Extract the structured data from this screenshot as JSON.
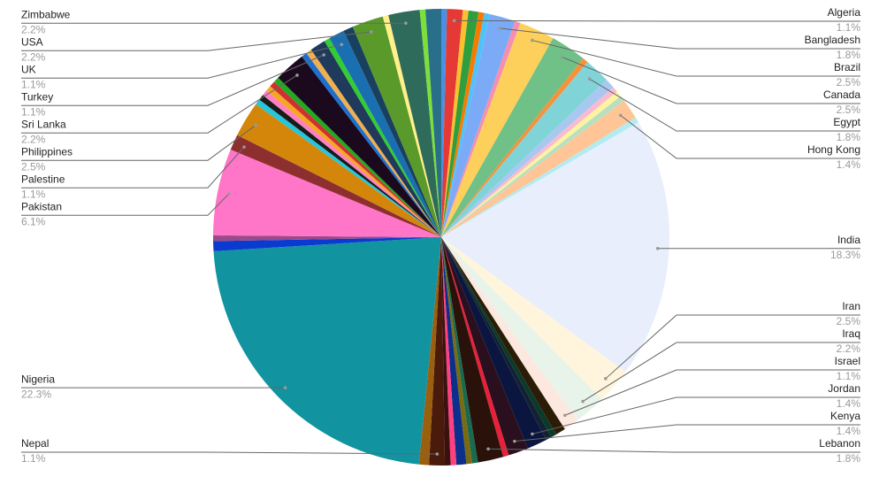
{
  "chart_data": {
    "type": "pie",
    "categories": [
      null,
      "Algeria",
      null,
      null,
      null,
      null,
      "Bangladesh",
      null,
      "Brazil",
      "Canada",
      null,
      "Egypt",
      null,
      null,
      null,
      null,
      "Hong Kong",
      null,
      "India",
      "Iran",
      "Iraq",
      "Israel",
      null,
      null,
      null,
      "Jordan",
      "Kenya",
      null,
      "Lebanon",
      null,
      null,
      null,
      null,
      null,
      "Nepal",
      null,
      "Nigeria",
      null,
      null,
      "Pakistan",
      "Palestine",
      "Philippines",
      null,
      null,
      null,
      null,
      null,
      null,
      "Sri Lanka",
      null,
      null,
      "Turkey",
      null,
      "UK",
      null,
      "USA",
      null,
      "Zimbabwe",
      null,
      null
    ],
    "values": [
      0.4,
      1.1,
      0.4,
      0.7,
      0.4,
      0.4,
      1.8,
      0.4,
      2.5,
      2.5,
      0.4,
      1.8,
      0.7,
      0.4,
      0.4,
      0.4,
      1.4,
      0.4,
      18.3,
      2.5,
      2.2,
      1.1,
      0.7,
      0.4,
      0.4,
      1.4,
      1.4,
      0.4,
      1.8,
      0.4,
      0.4,
      0.7,
      0.4,
      0.4,
      1.1,
      0.7,
      22.3,
      0.7,
      0.4,
      6.1,
      1.1,
      2.5,
      0.4,
      0.4,
      0.4,
      0.4,
      0.4,
      0.4,
      2.2,
      0.4,
      0.4,
      1.1,
      0.4,
      1.1,
      0.7,
      2.2,
      0.4,
      2.2,
      0.4,
      1.1
    ],
    "value_labels": [
      null,
      "1.1%",
      null,
      null,
      null,
      null,
      "1.8%",
      null,
      "2.5%",
      "2.5%",
      null,
      "1.8%",
      null,
      null,
      null,
      null,
      "1.4%",
      null,
      "18.3%",
      "2.5%",
      "2.2%",
      "1.1%",
      null,
      null,
      null,
      "1.4%",
      "1.4%",
      null,
      "1.8%",
      null,
      null,
      null,
      null,
      null,
      "1.1%",
      null,
      "22.3%",
      null,
      null,
      "6.1%",
      "1.1%",
      "2.5%",
      null,
      null,
      null,
      null,
      null,
      null,
      "2.2%",
      null,
      null,
      "1.1%",
      null,
      "1.1%",
      null,
      "2.2%",
      null,
      "2.2%",
      null,
      null
    ],
    "colors": [
      "#4a90e2",
      "#e53935",
      "#fbc02d",
      "#2e9e3e",
      "#f57c00",
      "#4fc3f7",
      "#7baaf7",
      "#f48fb1",
      "#fcd05a",
      "#6fc187",
      "#f5923e",
      "#80d4d8",
      "#a8c8f0",
      "#f8bbd0",
      "#fff3a0",
      "#b8e0c0",
      "#ffc597",
      "#b2ebf2",
      "#e8eefc",
      "#fff5dc",
      "#e8f4ea",
      "#fde8e0",
      "#2b1d05",
      "#0b3a2a",
      "#122233",
      "#0b1640",
      "#2a0f1e",
      "#e8203a",
      "#2a120a",
      "#1a6a50",
      "#7a6a10",
      "#0b2f8a",
      "#ff4080",
      "#3a1010",
      "#4a1a0a",
      "#9a6010",
      "#1293a0",
      "#0a3ad0",
      "#9a4a8a",
      "#ff75c8",
      "#8e2f2f",
      "#d4860b",
      "#26c6da",
      "#1a1a1a",
      "#ff80c0",
      "#f5a623",
      "#d03030",
      "#22aa22",
      "#1b0a1e",
      "#1e6fd0",
      "#f0b050",
      "#1f3a5a",
      "#33cc33",
      "#1a6fb0",
      "#1a4060",
      "#5a9a2a",
      "#fff08a",
      "#2f6b5a",
      "#7be03a",
      "#2a6f8a"
    ]
  }
}
